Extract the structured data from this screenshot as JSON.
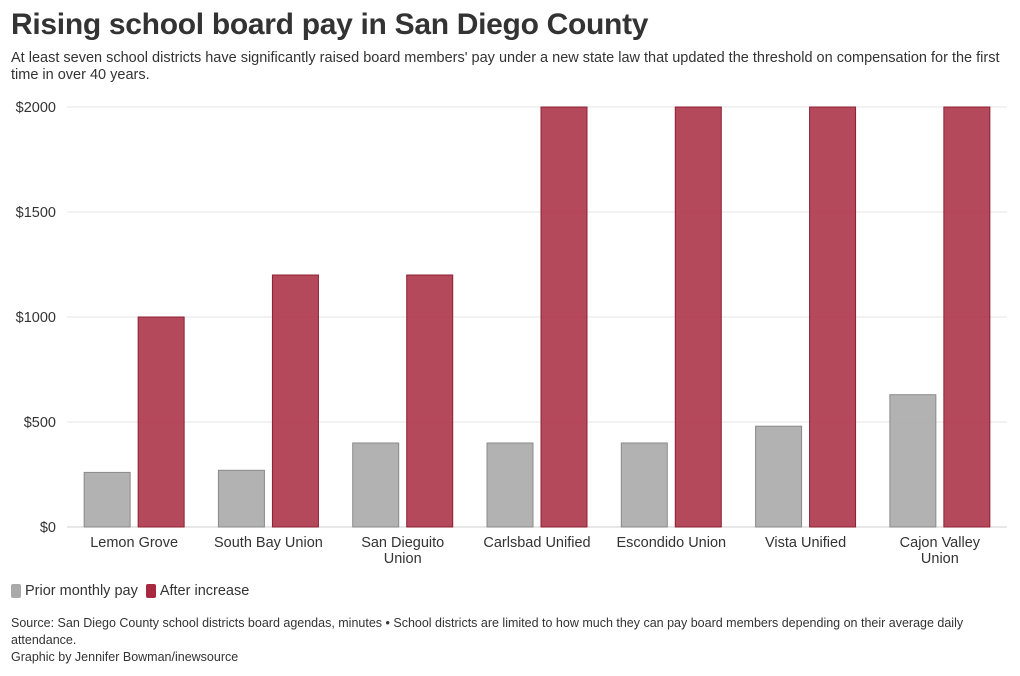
{
  "header": {
    "title": "Rising school board pay in San Diego County",
    "subtitle": "At least seven school districts have significantly raised board members' pay under a new state law that updated the threshold on compensation for the first time in over 40 years."
  },
  "legend": {
    "prior_label": "Prior monthly pay",
    "after_label": "After increase"
  },
  "colors": {
    "prior": "#aaaaaa",
    "after": "#a8293f"
  },
  "footer": {
    "source": "Source: San Diego County school districts board agendas, minutes • School districts are limited to how much they can pay board members depending on their average daily attendance.",
    "credit": "Graphic by Jennifer Bowman/inewsource"
  },
  "chart_data": {
    "type": "bar",
    "title": "Rising school board pay in San Diego County",
    "categories": [
      [
        "Lemon Grove"
      ],
      [
        "South Bay Union"
      ],
      [
        "San Dieguito",
        "Union"
      ],
      [
        "Carlsbad Unified"
      ],
      [
        "Escondido Union"
      ],
      [
        "Vista Unified"
      ],
      [
        "Cajon Valley",
        "Union"
      ]
    ],
    "series": [
      {
        "name": "Prior monthly pay",
        "values": [
          260,
          270,
          400,
          400,
          400,
          480,
          630
        ]
      },
      {
        "name": "After increase",
        "values": [
          1000,
          1200,
          1200,
          2000,
          2000,
          2000,
          2000
        ]
      }
    ],
    "yticks": [
      0,
      500,
      1000,
      1500,
      2000
    ],
    "ytick_labels": [
      "$0",
      "$500",
      "$1000",
      "$1500",
      "$2000"
    ],
    "ylim": [
      0,
      2000
    ],
    "xlabel": "",
    "ylabel": "",
    "grid": true
  }
}
